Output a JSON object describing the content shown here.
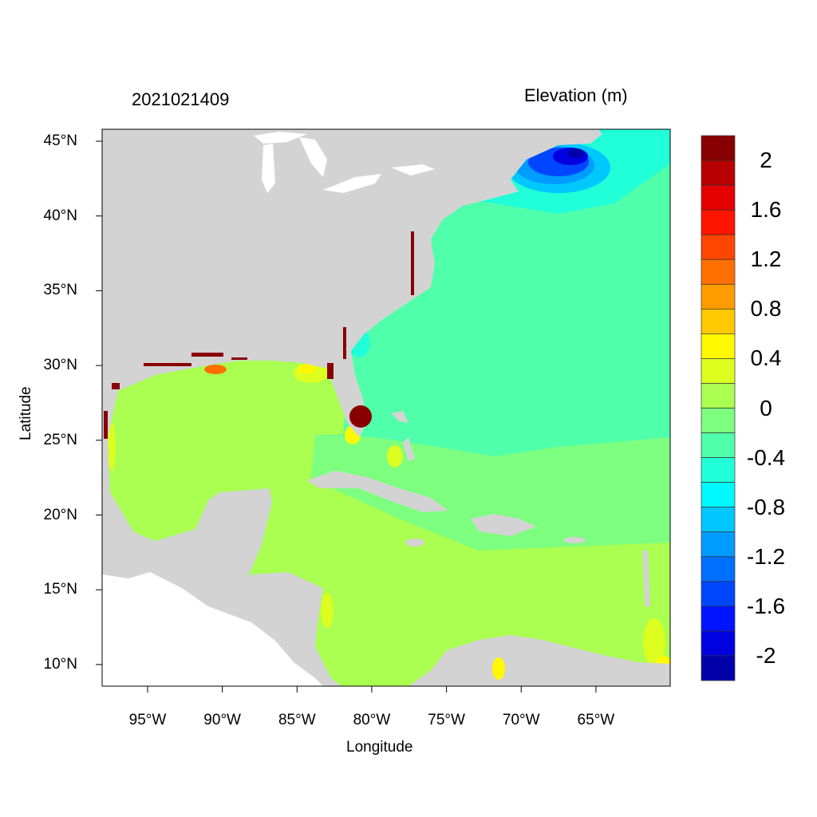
{
  "title_left": "2021021409",
  "title_right": "Elevation (m)",
  "xlabel": "Longitude",
  "ylabel": "Latitude",
  "lat_ticks": [
    {
      "v": 45,
      "label": "45°N"
    },
    {
      "v": 40,
      "label": "40°N"
    },
    {
      "v": 35,
      "label": "35°N"
    },
    {
      "v": 30,
      "label": "30°N"
    },
    {
      "v": 25,
      "label": "25°N"
    },
    {
      "v": 20,
      "label": "20°N"
    },
    {
      "v": 15,
      "label": "15°N"
    },
    {
      "v": 10,
      "label": "10°N"
    }
  ],
  "lon_ticks": [
    {
      "v": -95,
      "label": "95°W"
    },
    {
      "v": -90,
      "label": "90°W"
    },
    {
      "v": -85,
      "label": "85°W"
    },
    {
      "v": -80,
      "label": "80°W"
    },
    {
      "v": -75,
      "label": "75°W"
    },
    {
      "v": -70,
      "label": "70°W"
    },
    {
      "v": -65,
      "label": "65°W"
    }
  ],
  "map_extent": {
    "lon": [
      -98,
      -60
    ],
    "lat": [
      8.5,
      45.8
    ]
  },
  "colors": {
    "land": "#d3d3d3",
    "no_data": "#ffffff"
  },
  "colorbar": {
    "colors": [
      "#880000",
      "#b80000",
      "#e60000",
      "#ff1400",
      "#ff4600",
      "#ff7000",
      "#ff9c00",
      "#ffc800",
      "#fff800",
      "#dcff20",
      "#aaff50",
      "#7dff80",
      "#50ffaa",
      "#20ffd8",
      "#00f8ff",
      "#00c8ff",
      "#009cff",
      "#0070ff",
      "#0046ff",
      "#0014ff",
      "#0000e0",
      "#0000aa"
    ],
    "labels": [
      "2",
      "1.6",
      "1.2",
      "0.8",
      "0.4",
      "0",
      "-0.4",
      "-0.8",
      "-1.2",
      "-1.6",
      "-2"
    ]
  }
}
